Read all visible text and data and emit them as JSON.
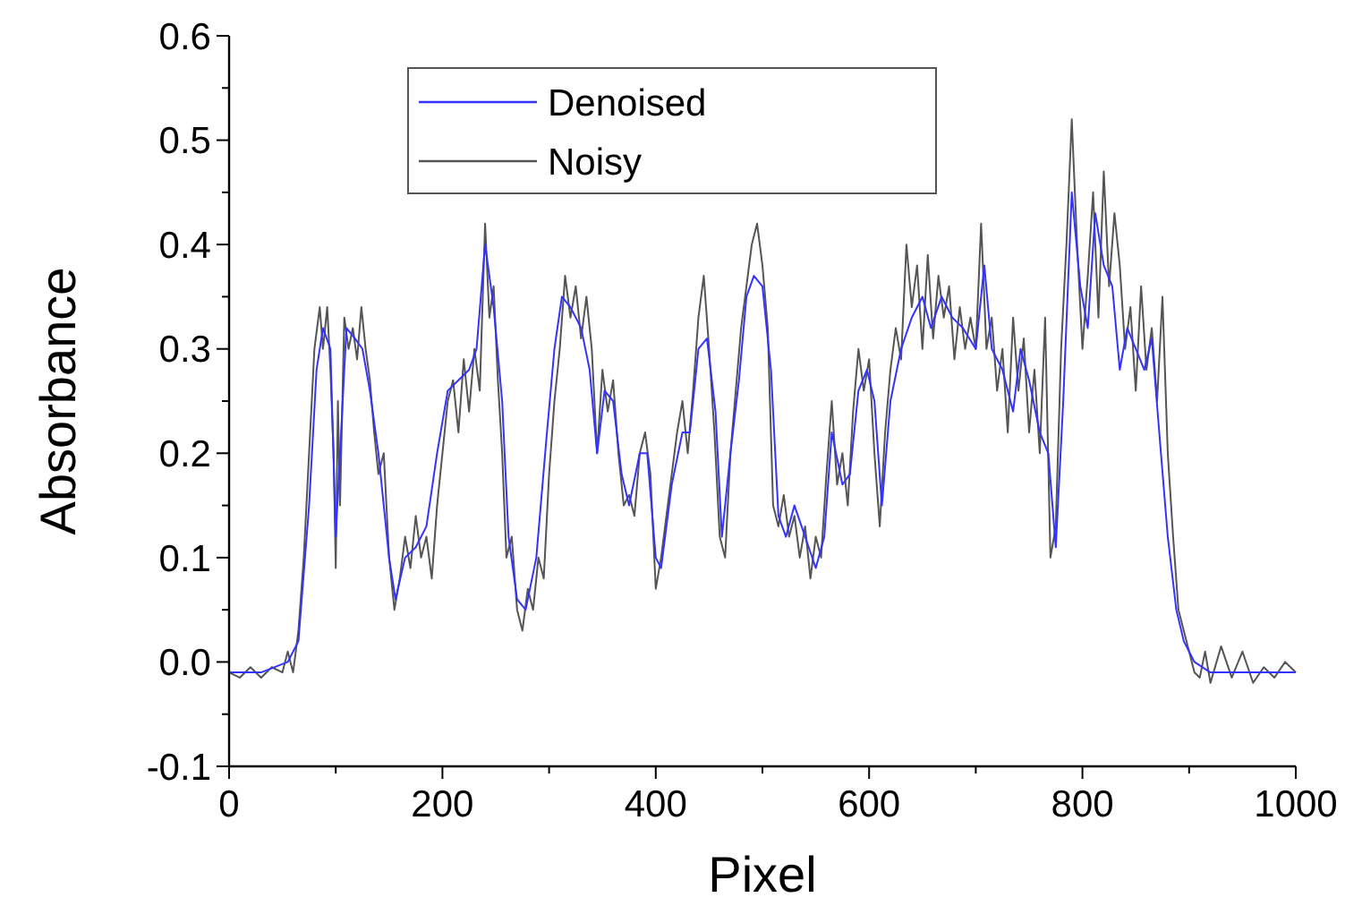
{
  "chart_data": {
    "type": "line",
    "xlabel": "Pixel",
    "ylabel": "Absorbance",
    "xlim": [
      0,
      1000
    ],
    "ylim": [
      -0.1,
      0.6
    ],
    "xticks": [
      0,
      {
        "value": 100,
        "label": null
      },
      200,
      {
        "value": 300,
        "label": null
      },
      400,
      {
        "value": 500,
        "label": null
      },
      600,
      {
        "value": 700,
        "label": null
      },
      800,
      {
        "value": 900,
        "label": null
      },
      1000
    ],
    "yticks": [
      {
        "value": -0.1,
        "label": "-0.1"
      },
      {
        "value": -0.05,
        "label": null
      },
      {
        "value": 0,
        "label": "0.0"
      },
      {
        "value": 0.05,
        "label": null
      },
      {
        "value": 0.1,
        "label": "0.1"
      },
      {
        "value": 0.15,
        "label": null
      },
      {
        "value": 0.2,
        "label": "0.2"
      },
      {
        "value": 0.25,
        "label": null
      },
      {
        "value": 0.3,
        "label": "0.3"
      },
      {
        "value": 0.35,
        "label": null
      },
      {
        "value": 0.4,
        "label": "0.4"
      },
      {
        "value": 0.45,
        "label": null
      },
      {
        "value": 0.5,
        "label": "0.5"
      },
      {
        "value": 0.55,
        "label": null
      },
      {
        "value": 0.6,
        "label": "0.6"
      }
    ],
    "grid": false,
    "legend": "top",
    "line_style": "solid",
    "marker": "none",
    "series": [
      {
        "name": "Noisy",
        "color": "#555555",
        "x": [
          0,
          10,
          20,
          30,
          40,
          50,
          55,
          60,
          65,
          70,
          75,
          80,
          85,
          88,
          92,
          95,
          98,
          100,
          102,
          104,
          108,
          112,
          116,
          120,
          124,
          128,
          132,
          136,
          140,
          145,
          150,
          155,
          160,
          165,
          170,
          175,
          180,
          185,
          190,
          195,
          200,
          205,
          210,
          215,
          220,
          225,
          230,
          235,
          240,
          244,
          248,
          252,
          256,
          260,
          265,
          270,
          275,
          280,
          285,
          290,
          295,
          300,
          305,
          310,
          315,
          320,
          325,
          330,
          335,
          340,
          345,
          350,
          355,
          360,
          365,
          370,
          375,
          380,
          385,
          390,
          395,
          400,
          405,
          410,
          415,
          420,
          425,
          430,
          435,
          440,
          445,
          450,
          455,
          460,
          465,
          470,
          475,
          480,
          485,
          490,
          495,
          500,
          505,
          510,
          515,
          520,
          525,
          530,
          535,
          540,
          545,
          550,
          555,
          560,
          565,
          570,
          575,
          580,
          585,
          590,
          595,
          600,
          605,
          610,
          615,
          620,
          625,
          630,
          635,
          640,
          645,
          650,
          655,
          660,
          665,
          670,
          675,
          680,
          685,
          690,
          695,
          700,
          705,
          710,
          715,
          720,
          725,
          730,
          735,
          740,
          745,
          750,
          755,
          760,
          765,
          770,
          775,
          780,
          785,
          790,
          795,
          800,
          805,
          810,
          815,
          820,
          825,
          830,
          835,
          840,
          845,
          850,
          855,
          860,
          865,
          870,
          875,
          880,
          885,
          890,
          895,
          900,
          905,
          910,
          915,
          920,
          930,
          940,
          950,
          960,
          970,
          980,
          990,
          1000
        ],
        "values": [
          -0.01,
          -0.015,
          -0.005,
          -0.015,
          -0.005,
          -0.01,
          0.01,
          -0.01,
          0.03,
          0.1,
          0.2,
          0.3,
          0.34,
          0.3,
          0.34,
          0.28,
          0.2,
          0.09,
          0.25,
          0.15,
          0.33,
          0.3,
          0.32,
          0.29,
          0.34,
          0.3,
          0.27,
          0.22,
          0.18,
          0.2,
          0.1,
          0.05,
          0.08,
          0.12,
          0.09,
          0.14,
          0.1,
          0.12,
          0.08,
          0.15,
          0.2,
          0.25,
          0.27,
          0.22,
          0.29,
          0.24,
          0.3,
          0.26,
          0.42,
          0.33,
          0.36,
          0.27,
          0.2,
          0.1,
          0.12,
          0.05,
          0.03,
          0.07,
          0.05,
          0.1,
          0.08,
          0.18,
          0.25,
          0.3,
          0.37,
          0.33,
          0.36,
          0.31,
          0.35,
          0.3,
          0.2,
          0.28,
          0.24,
          0.27,
          0.2,
          0.15,
          0.16,
          0.14,
          0.2,
          0.22,
          0.18,
          0.07,
          0.1,
          0.14,
          0.18,
          0.22,
          0.25,
          0.2,
          0.26,
          0.33,
          0.37,
          0.3,
          0.22,
          0.12,
          0.1,
          0.2,
          0.26,
          0.32,
          0.36,
          0.4,
          0.42,
          0.38,
          0.32,
          0.15,
          0.13,
          0.16,
          0.12,
          0.14,
          0.1,
          0.13,
          0.08,
          0.12,
          0.1,
          0.18,
          0.25,
          0.17,
          0.2,
          0.15,
          0.24,
          0.3,
          0.26,
          0.29,
          0.2,
          0.13,
          0.22,
          0.28,
          0.32,
          0.29,
          0.4,
          0.34,
          0.38,
          0.3,
          0.39,
          0.31,
          0.37,
          0.33,
          0.36,
          0.29,
          0.34,
          0.3,
          0.33,
          0.3,
          0.42,
          0.3,
          0.33,
          0.26,
          0.3,
          0.22,
          0.33,
          0.26,
          0.31,
          0.22,
          0.28,
          0.2,
          0.33,
          0.1,
          0.13,
          0.3,
          0.4,
          0.52,
          0.4,
          0.3,
          0.37,
          0.45,
          0.33,
          0.47,
          0.36,
          0.43,
          0.38,
          0.3,
          0.34,
          0.26,
          0.36,
          0.28,
          0.32,
          0.25,
          0.35,
          0.2,
          0.12,
          0.05,
          0.03,
          0.01,
          -0.01,
          -0.015,
          0.01,
          -0.02,
          0.015,
          -0.015,
          0.01,
          -0.02,
          -0.005,
          -0.015,
          0.0,
          -0.01
        ]
      },
      {
        "name": "Denoised",
        "color": "#3333ff",
        "x": [
          0,
          30,
          55,
          65,
          75,
          82,
          88,
          95,
          100,
          104,
          110,
          118,
          125,
          132,
          140,
          150,
          156,
          165,
          175,
          185,
          195,
          205,
          215,
          225,
          232,
          240,
          248,
          256,
          262,
          270,
          278,
          288,
          298,
          305,
          312,
          320,
          330,
          338,
          345,
          352,
          360,
          368,
          375,
          385,
          392,
          400,
          405,
          415,
          425,
          432,
          440,
          448,
          456,
          462,
          470,
          478,
          485,
          492,
          500,
          508,
          515,
          522,
          530,
          540,
          550,
          558,
          565,
          575,
          582,
          590,
          598,
          605,
          612,
          620,
          630,
          640,
          650,
          658,
          668,
          678,
          688,
          700,
          708,
          715,
          725,
          735,
          742,
          750,
          760,
          768,
          775,
          782,
          790,
          798,
          805,
          812,
          820,
          828,
          835,
          842,
          850,
          858,
          865,
          872,
          880,
          888,
          895,
          905,
          920,
          940,
          960,
          1000
        ],
        "values": [
          -0.01,
          -0.01,
          0.0,
          0.02,
          0.15,
          0.28,
          0.32,
          0.3,
          0.12,
          0.2,
          0.32,
          0.31,
          0.3,
          0.26,
          0.2,
          0.1,
          0.06,
          0.1,
          0.11,
          0.13,
          0.2,
          0.26,
          0.27,
          0.28,
          0.3,
          0.4,
          0.34,
          0.25,
          0.12,
          0.06,
          0.05,
          0.1,
          0.22,
          0.3,
          0.35,
          0.34,
          0.32,
          0.28,
          0.2,
          0.26,
          0.25,
          0.18,
          0.15,
          0.2,
          0.2,
          0.1,
          0.09,
          0.17,
          0.22,
          0.22,
          0.3,
          0.31,
          0.24,
          0.12,
          0.2,
          0.27,
          0.35,
          0.37,
          0.36,
          0.28,
          0.14,
          0.12,
          0.15,
          0.12,
          0.09,
          0.12,
          0.22,
          0.17,
          0.18,
          0.26,
          0.28,
          0.25,
          0.15,
          0.25,
          0.3,
          0.33,
          0.35,
          0.32,
          0.35,
          0.33,
          0.32,
          0.3,
          0.38,
          0.3,
          0.28,
          0.24,
          0.3,
          0.27,
          0.22,
          0.2,
          0.11,
          0.25,
          0.45,
          0.36,
          0.32,
          0.43,
          0.38,
          0.36,
          0.28,
          0.32,
          0.3,
          0.28,
          0.31,
          0.22,
          0.12,
          0.05,
          0.02,
          0.0,
          -0.01,
          -0.01,
          -0.01,
          -0.01
        ]
      }
    ]
  }
}
